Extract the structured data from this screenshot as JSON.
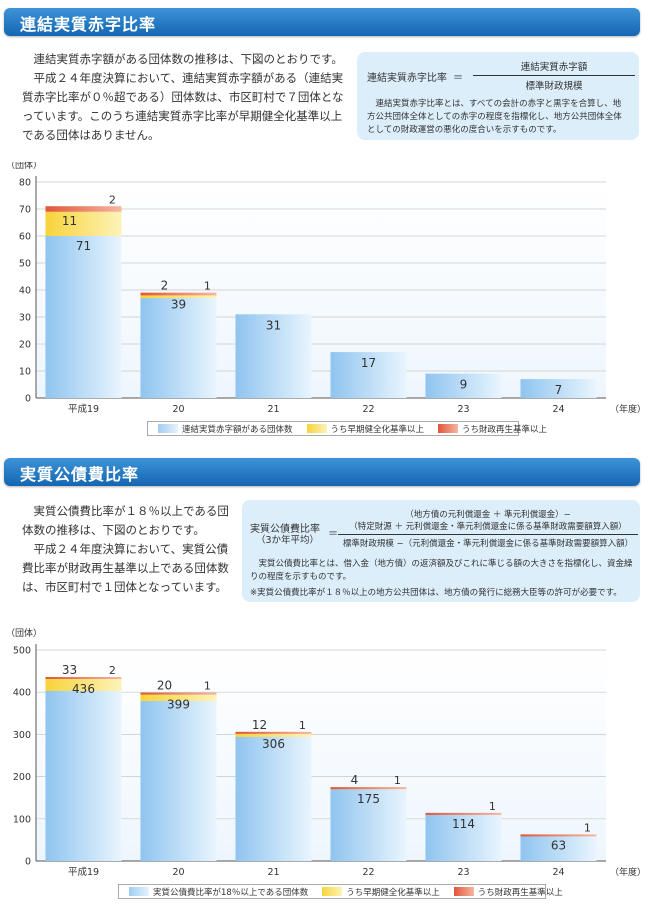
{
  "section1": {
    "title": "連結実質赤字比率",
    "para1": "連結実質赤字額がある団体数の推移は、下図のとおりです。",
    "para2": "平成２４年度決算において、連結実質赤字額がある（連結実質赤字比率が０％超である）団体数は、市区町村で７団体となっています。このうち連結実質赤字比率が早期健全化基準以上である団体はありません。",
    "def": {
      "label": "連結実質赤字比率",
      "equals": "＝",
      "numerator": "連結実質赤字額",
      "denominator": "標準財政規模",
      "description": "連結実質赤字比率とは、すべての会計の赤字と黒字を合算し、地方公共団体全体としての赤字の程度を指標化し、地方公共団体全体としての財政運営の悪化の度合いを示すものです。"
    }
  },
  "section2": {
    "title": "実質公債費比率",
    "para1": "実質公債費比率が１８％以上である団体数の推移は、下図のとおりです。",
    "para2": "平成２４年度決算において、実質公債費比率が財政再生基準以上である団体数は、市区町村で１団体となっています。",
    "def": {
      "label": "実質公債費比率",
      "label_sub": "（3か年平均）",
      "equals": "＝",
      "numerator_line1": "（地方債の元利償還金 ＋ 準元利償還金）−",
      "numerator_line2": "（特定財源 ＋ 元利償還金・準元利償還金に係る基準財政需要額算入額）",
      "denominator": "標準財政規模 −（元利償還金・準元利償還金に係る基準財政需要額算入額）",
      "description": "実質公債費比率とは、借入金（地方債）の返済額及びこれに準じる額の大きさを指標化し、資金繰りの程度を示すものです。",
      "note": "※実質公債費比率が１８％以上の地方公共団体は、地方債の発行に総務大臣等の許可が必要です。"
    }
  },
  "chart_data": [
    {
      "type": "bar",
      "stacked": true,
      "unit_label": "（団体）",
      "xlabel_suffix": "（年度）",
      "categories": [
        "平成19",
        "20",
        "21",
        "22",
        "23",
        "24"
      ],
      "series": [
        {
          "name": "連結実質赤字額がある団体数",
          "values": [
            71,
            39,
            31,
            17,
            9,
            7
          ],
          "color": "#a9d3f4"
        },
        {
          "name": "うち早期健全化基準以上",
          "values": [
            11,
            2,
            0,
            0,
            0,
            0
          ],
          "color": "#f7d33a"
        },
        {
          "name": "うち財政再生基準以上",
          "values": [
            2,
            1,
            0,
            0,
            0,
            0
          ],
          "color": "#e2553a"
        }
      ],
      "ylim": [
        0,
        80
      ],
      "yticks": [
        0,
        10,
        20,
        30,
        40,
        50,
        60,
        70,
        80
      ]
    },
    {
      "type": "bar",
      "stacked": true,
      "unit_label": "（団体）",
      "xlabel_suffix": "（年度）",
      "categories": [
        "平成19",
        "20",
        "21",
        "22",
        "23",
        "24"
      ],
      "series": [
        {
          "name": "実質公債費比率が18％以上である団体数",
          "values": [
            436,
            399,
            306,
            175,
            114,
            63
          ],
          "color": "#a9d3f4"
        },
        {
          "name": "うち早期健全化基準以上",
          "values": [
            33,
            20,
            12,
            4,
            0,
            0
          ],
          "color": "#f7d33a"
        },
        {
          "name": "うち財政再生基準以上",
          "values": [
            2,
            1,
            1,
            1,
            1,
            1
          ],
          "color": "#e2553a"
        }
      ],
      "ylim": [
        0,
        500
      ],
      "yticks": [
        0,
        100,
        200,
        300,
        400,
        500
      ]
    }
  ]
}
